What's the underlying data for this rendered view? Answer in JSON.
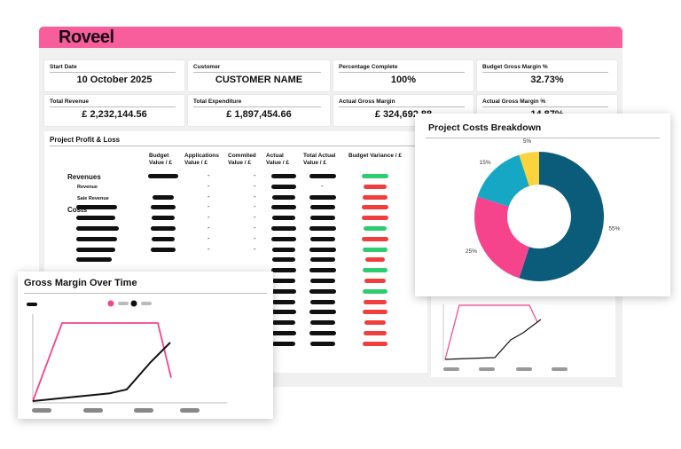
{
  "brand": {
    "name": "Roveel",
    "color": "#f75e9b"
  },
  "kpis": [
    {
      "label": "Start Date",
      "value": "10 October 2025"
    },
    {
      "label": "Customer",
      "value": "CUSTOMER NAME"
    },
    {
      "label": "Percentage Complete",
      "value": "100%"
    },
    {
      "label": "Budget Gross Margin %",
      "value": "32.73%"
    },
    {
      "label": "Total Revenue",
      "value": "£ 2,232,144.56"
    },
    {
      "label": "Total Expenditure",
      "value": "£ 1,897,454.66"
    },
    {
      "label": "Actual Gross Margin",
      "value": "£ 324,692,88"
    },
    {
      "label": "Actual Gross Margin %",
      "value": "14.87%"
    }
  ],
  "profit_loss": {
    "title": "Project Profit & Loss",
    "columns": [
      "Budget Value / £",
      "Applications Value / £",
      "Commited Value / £",
      "Actual Value / £",
      "Total Actual Value / £",
      "Budget Variance / £"
    ],
    "revenues_label": "Revenues",
    "revenue_label": "Revenue",
    "sale_revenue_label": "Sale Revenue",
    "costs_label": "Costs",
    "dash": "-",
    "variance_colors": {
      "positive": "#2ecc71",
      "negative": "#f03e3e"
    }
  },
  "costs_breakdown": {
    "title": "Project Costs Breakdown",
    "chart_data": {
      "type": "pie",
      "style": "donut",
      "values": [
        55,
        25,
        15,
        5
      ],
      "labels": [
        "55%",
        "25%",
        "15%",
        "5%"
      ],
      "colors": [
        "#0b5c7a",
        "#f5448c",
        "#16a7c4",
        "#fbd33d"
      ]
    }
  },
  "gross_margin": {
    "title": "Gross Margin Over Time",
    "chart_data": {
      "type": "line",
      "series": [
        {
          "color": "#f5448c",
          "values": [
            0,
            10,
            10,
            10,
            10,
            3
          ]
        },
        {
          "color": "#111111",
          "values": [
            0,
            0.5,
            1,
            1.5,
            5,
            7.5
          ]
        }
      ]
    }
  }
}
